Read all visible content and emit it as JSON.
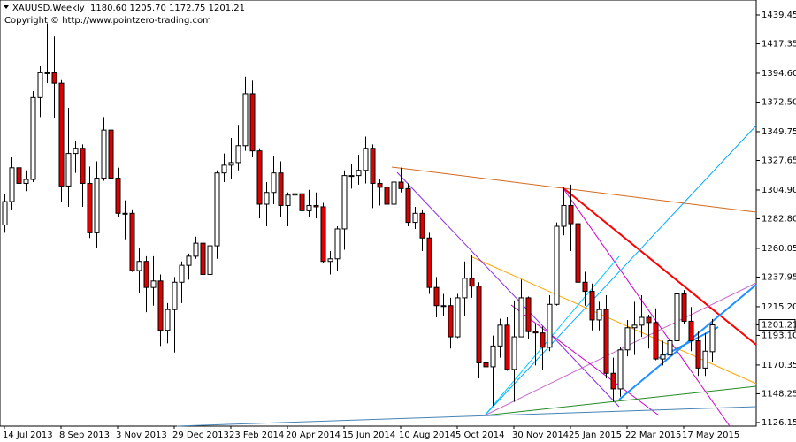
{
  "chart_data": {
    "type": "candlestick",
    "title": "XAUUSD,Weekly  1180.60 1205.70 1172.75 1201.21",
    "subtitle": "Copyright © http://www.pointzero-trading.com",
    "categories": [
      "14 Jul 2013",
      null,
      null,
      null,
      null,
      null,
      null,
      null,
      "8 Sep 2013",
      null,
      null,
      null,
      null,
      null,
      null,
      null,
      "3 Nov 2013",
      null,
      null,
      null,
      null,
      null,
      null,
      null,
      "29 Dec 2013",
      null,
      null,
      null,
      null,
      null,
      null,
      null,
      "23 Feb 2014",
      null,
      null,
      null,
      null,
      null,
      null,
      null,
      "20 Apr 2014",
      null,
      null,
      null,
      null,
      null,
      null,
      null,
      "15 Jun 2014",
      null,
      null,
      null,
      null,
      null,
      null,
      null,
      "10 Aug 2014",
      null,
      null,
      null,
      null,
      null,
      null,
      null,
      "5 Oct 2014",
      null,
      null,
      null,
      null,
      null,
      null,
      null,
      "30 Nov 2014",
      null,
      null,
      null,
      null,
      null,
      null,
      null,
      "25 Jan 2015",
      null,
      null,
      null,
      null,
      null,
      null,
      null,
      "22 Mar 2015",
      null,
      null,
      null,
      null,
      null,
      null,
      null,
      "17 May 2015",
      null,
      null,
      null,
      null
    ],
    "open": [
      1278,
      1296,
      1322,
      1310,
      1313,
      1376,
      1395,
      1395,
      1387,
      1308,
      1333,
      1337,
      1310,
      1272,
      1314,
      1351,
      1314,
      1287,
      1287,
      1243,
      1250,
      1230,
      1235,
      1197,
      1213,
      1234,
      1247,
      1254,
      1264,
      1240,
      1262,
      1318,
      1324,
      1326,
      1339,
      1379,
      1335,
      1294,
      1303,
      1318,
      1293,
      1301,
      1302,
      1289,
      1293,
      1292,
      1250,
      1252,
      1275,
      1316,
      1316,
      1320,
      1337,
      1310,
      1307,
      1294,
      1311,
      1306,
      1280,
      1287,
      1268,
      1230,
      1216,
      1216,
      1192,
      1222,
      1237,
      1231,
      1172,
      1169,
      1185,
      1201,
      1167,
      1192,
      1222,
      1196,
      1195,
      1184,
      1217,
      1277,
      1293,
      1279,
      1234,
      1227,
      1205,
      1213,
      1164,
      1152,
      1182,
      1199,
      1201,
      1207,
      1203,
      1175,
      1178,
      1189,
      1225,
      1204,
      1189,
      1168,
      1180.6
    ],
    "high": [
      1302,
      1330,
      1327,
      1320,
      1381,
      1400,
      1433,
      1423,
      1390,
      1368,
      1343,
      1340,
      1323,
      1327,
      1361,
      1362,
      1322,
      1297,
      1290,
      1260,
      1254,
      1254,
      1240,
      1218,
      1238,
      1250,
      1256,
      1269,
      1270,
      1268,
      1320,
      1333,
      1345,
      1355,
      1392,
      1389,
      1337,
      1311,
      1331,
      1327,
      1303,
      1316,
      1316,
      1305,
      1303,
      1295,
      1258,
      1277,
      1320,
      1325,
      1332,
      1346,
      1340,
      1313,
      1315,
      1315,
      1322,
      1310,
      1292,
      1290,
      1272,
      1238,
      1225,
      1222,
      1225,
      1250,
      1255,
      1234,
      1182,
      1193,
      1206,
      1207,
      1220,
      1236,
      1223,
      1202,
      1200,
      1224,
      1280,
      1307,
      1309,
      1287,
      1242,
      1233,
      1219,
      1224,
      1176,
      1184,
      1205,
      1219,
      1224,
      1209,
      1214,
      1189,
      1193,
      1232,
      1228,
      1215,
      1196,
      1195,
      1205.7
    ],
    "low": [
      1272,
      1290,
      1302,
      1304,
      1311,
      1361,
      1387,
      1360,
      1296,
      1292,
      1318,
      1292,
      1268,
      1260,
      1312,
      1308,
      1284,
      1267,
      1242,
      1226,
      1211,
      1216,
      1185,
      1187,
      1180,
      1218,
      1236,
      1252,
      1238,
      1238,
      1252,
      1311,
      1313,
      1320,
      1335,
      1330,
      1283,
      1277,
      1294,
      1284,
      1277,
      1281,
      1282,
      1284,
      1283,
      1249,
      1240,
      1243,
      1259,
      1306,
      1309,
      1310,
      1291,
      1293,
      1283,
      1285,
      1303,
      1277,
      1275,
      1258,
      1225,
      1207,
      1208,
      1183,
      1191,
      1208,
      1222,
      1160,
      1131,
      1139,
      1176,
      1166,
      1142,
      1192,
      1190,
      1170,
      1167,
      1181,
      1216,
      1270,
      1258,
      1232,
      1216,
      1197,
      1197,
      1160,
      1142,
      1146,
      1177,
      1178,
      1192,
      1183,
      1174,
      1170,
      1168,
      1179,
      1202,
      1181,
      1162,
      1162,
      1172.75
    ],
    "close": [
      1296,
      1322,
      1310,
      1313,
      1376,
      1395,
      1395,
      1387,
      1308,
      1333,
      1337,
      1310,
      1272,
      1314,
      1351,
      1314,
      1287,
      1287,
      1243,
      1250,
      1230,
      1235,
      1197,
      1213,
      1234,
      1247,
      1254,
      1264,
      1240,
      1262,
      1318,
      1324,
      1326,
      1339,
      1379,
      1335,
      1294,
      1303,
      1318,
      1293,
      1301,
      1302,
      1289,
      1293,
      1292,
      1250,
      1252,
      1275,
      1316,
      1316,
      1320,
      1337,
      1310,
      1307,
      1294,
      1311,
      1306,
      1280,
      1287,
      1268,
      1230,
      1216,
      1216,
      1192,
      1222,
      1237,
      1231,
      1172,
      1169,
      1185,
      1201,
      1167,
      1192,
      1222,
      1196,
      1195,
      1184,
      1217,
      1277,
      1293,
      1279,
      1234,
      1227,
      1205,
      1213,
      1164,
      1152,
      1182,
      1199,
      1201,
      1207,
      1203,
      1175,
      1178,
      1189,
      1225,
      1204,
      1189,
      1168,
      1181,
      1201.21
    ],
    "up_color": "#ffffff",
    "down_color": "#dd0000",
    "wick_color": "#000000",
    "ylim": [
      1123.4,
      1451.0
    ],
    "yticks": [
      1439.45,
      {
        "value": 1417.35,
        "label": "1417.35"
      },
      {
        "value": 1394.6,
        "label": "1394.60"
      },
      {
        "value": 1372.5,
        "label": "1372.50"
      },
      {
        "value": 1349.75,
        "label": "1349.75"
      },
      {
        "value": 1327.65,
        "label": "1327.65"
      },
      {
        "value": 1304.9,
        "label": "1304.90"
      },
      {
        "value": 1282.8,
        "label": "1282.80"
      },
      1260.05,
      1237.95,
      {
        "value": 1215.2,
        "label": "1215.20"
      },
      {
        "value": 1193.1,
        "label": "1193.10"
      },
      {
        "value": 1170.35,
        "label": "1170.35"
      },
      {
        "value": 1148.25,
        "label": "1148.25"
      },
      {
        "value": 1126.15,
        "label": "1126.15"
      }
    ],
    "grid": false
  }
}
